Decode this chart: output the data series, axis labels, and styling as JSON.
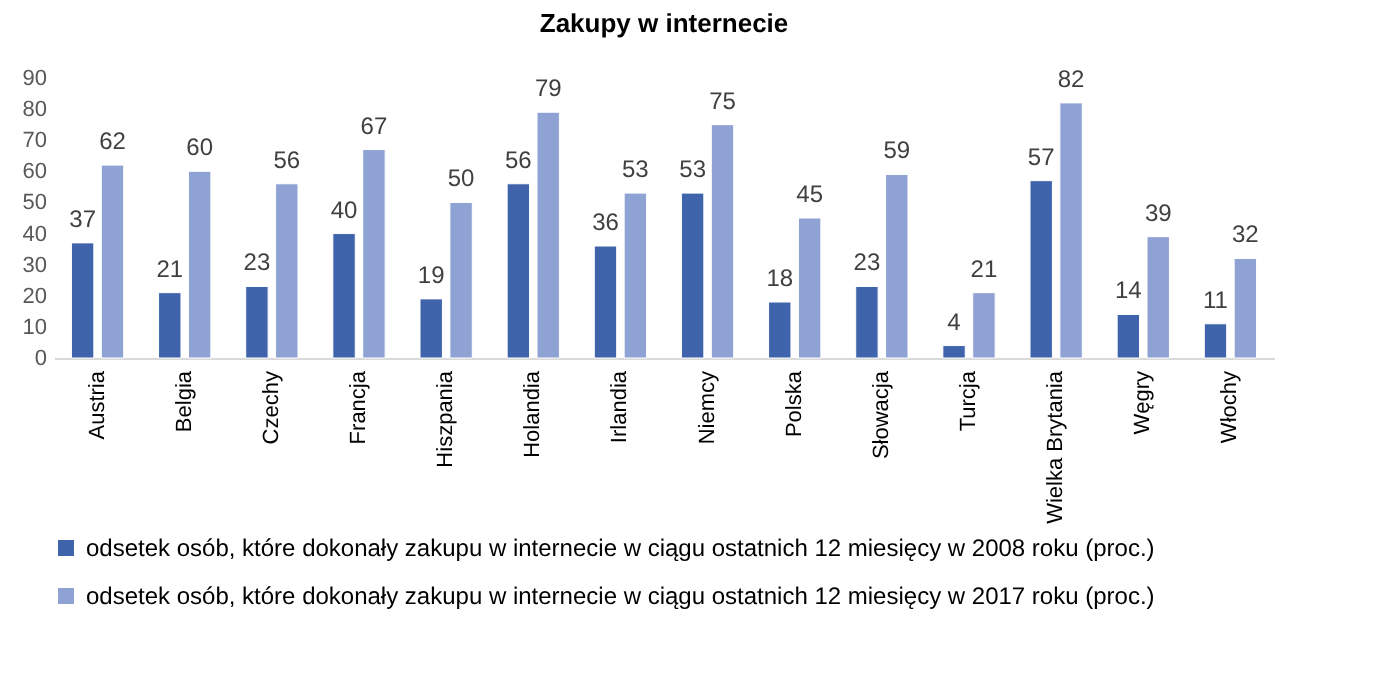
{
  "chart_data": {
    "type": "bar",
    "title": "Zakupy w internecie",
    "categories": [
      "Austria",
      "Belgia",
      "Czechy",
      "Francja",
      "Hiszpania",
      "Holandia",
      "Irlandia",
      "Niemcy",
      "Polska",
      "Słowacja",
      "Turcja",
      "Wielka Brytania",
      "Węgry",
      "Włochy"
    ],
    "series": [
      {
        "name": "odsetek osób, które dokonały zakupu w internecie w ciągu ostatnich 12 miesięcy w 2008 roku (proc.)",
        "color": "#3f64ac",
        "values": [
          37,
          21,
          23,
          40,
          19,
          56,
          36,
          53,
          18,
          23,
          4,
          57,
          14,
          11
        ]
      },
      {
        "name": "odsetek osób, które dokonały zakupu w internecie w ciągu ostatnich 12 miesięcy w 2017 roku (proc.)",
        "color": "#8fa2d4",
        "values": [
          62,
          60,
          56,
          67,
          50,
          79,
          53,
          75,
          45,
          59,
          21,
          82,
          39,
          32
        ]
      }
    ],
    "ylim": [
      0,
      90
    ],
    "yticks": [
      0,
      10,
      20,
      30,
      40,
      50,
      60,
      70,
      80,
      90
    ],
    "grid": false,
    "legend": "bottom",
    "data_labels": true
  }
}
